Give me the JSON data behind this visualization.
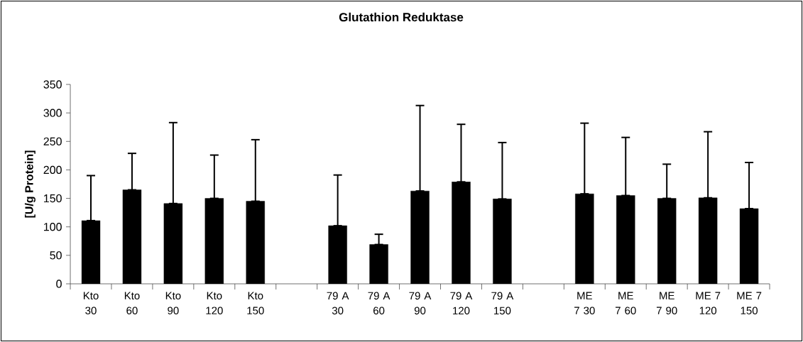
{
  "chart_data": {
    "type": "bar",
    "title": "Glutathion Reduktase",
    "ylabel": "[U/g Protein]",
    "categories": [
      "Kto 30",
      "Kto 60",
      "Kto 90",
      "Kto 120",
      "Kto 150",
      null,
      "79 A 30",
      "79 A 60",
      "79 A 90",
      "79 A 120",
      "79 A 150",
      null,
      "ME 7 30",
      "ME 7 60",
      "ME 7 90",
      "ME 7 120",
      "ME 7 150"
    ],
    "values": [
      111,
      165,
      141,
      150,
      145,
      null,
      102,
      69,
      163,
      179,
      149,
      null,
      158,
      155,
      150,
      151,
      132
    ],
    "errors": [
      [
        111,
        190
      ],
      [
        165,
        229
      ],
      [
        141,
        283
      ],
      [
        150,
        226
      ],
      [
        145,
        253
      ],
      null,
      [
        102,
        191
      ],
      [
        69,
        87
      ],
      [
        163,
        313
      ],
      [
        179,
        280
      ],
      [
        149,
        248
      ],
      null,
      [
        158,
        282
      ],
      [
        155,
        257
      ],
      [
        150,
        210
      ],
      [
        151,
        267
      ],
      [
        132,
        213
      ]
    ],
    "color": "#000000",
    "ylim": [
      0,
      350
    ],
    "yticks": [
      0,
      50,
      100,
      150,
      200,
      250,
      300,
      350
    ]
  }
}
